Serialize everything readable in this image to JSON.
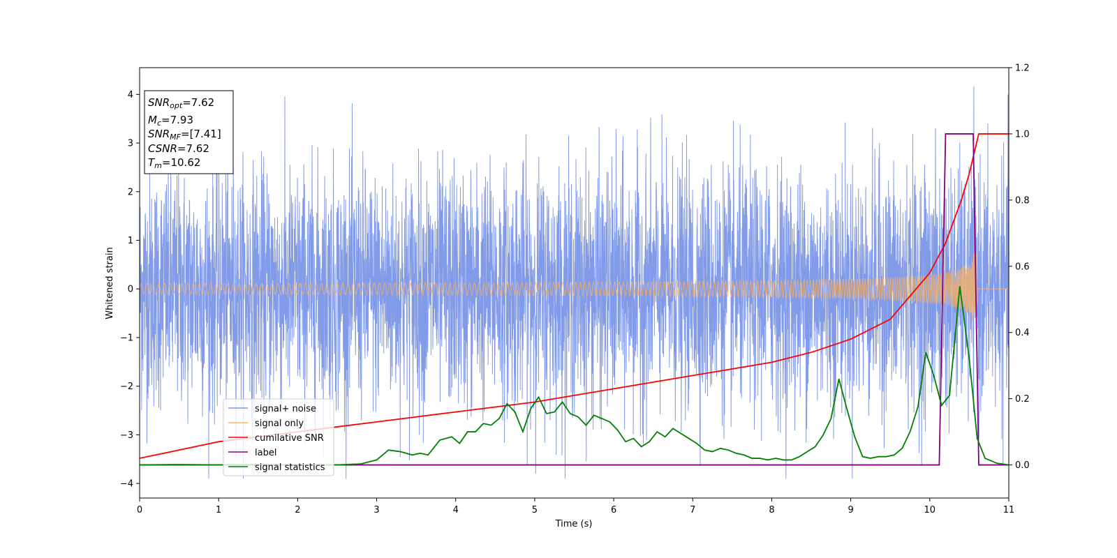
{
  "chart_data": {
    "type": "line",
    "xlabel": "Time (s)",
    "ylabel_left": "Whitened strain",
    "ylabel_right": "",
    "xlim": [
      0,
      11
    ],
    "ylim_left": [
      -4.3,
      4.55
    ],
    "ylim_right": [
      -0.1,
      1.2
    ],
    "x_ticks": [
      0,
      1,
      2,
      3,
      4,
      5,
      6,
      7,
      8,
      9,
      10,
      11
    ],
    "y_ticks_left": [
      -4,
      -3,
      -2,
      -1,
      0,
      1,
      2,
      3,
      4
    ],
    "y_ticks_right": [
      0.0,
      0.2,
      0.4,
      0.6,
      0.8,
      1.0,
      1.2
    ],
    "y_tick_labels_right": [
      "0.0",
      "0.2",
      "0.4",
      "0.6",
      "0.8",
      "1.0",
      "1.2"
    ],
    "grid": false,
    "legend_position": "lower-left",
    "annotation": {
      "snr_opt": {
        "name": "SNR",
        "sub": "opt",
        "value": "=7.62"
      },
      "mc": {
        "name": "M",
        "sub": "c",
        "value": "=7.93"
      },
      "snr_mf": {
        "name": "SNR",
        "sub": "MF",
        "value": "=[7.41]"
      },
      "csnr": {
        "name": "CSNR",
        "value": "=7.62"
      },
      "tm": {
        "name": "T",
        "sub": "m",
        "value": "=10.62"
      }
    },
    "series": [
      {
        "name": "signal+ noise",
        "axis": "left",
        "color": "#7b96e8",
        "description_envelope": {
          "typical_abs": 2.2,
          "peak_max": 4.17,
          "peak_min": -3.9
        }
      },
      {
        "name": "signal only",
        "axis": "left",
        "color": "#ffb35c",
        "chirp": {
          "start_amp": 0.03,
          "end_amp": 1.15,
          "end_time": 10.62
        }
      },
      {
        "name": "cumilative SNR",
        "axis": "right",
        "color": "#ff0000",
        "x": [
          0,
          1,
          2,
          3,
          4,
          5,
          6,
          7,
          8,
          8.5,
          9,
          9.5,
          10,
          10.2,
          10.4,
          10.5,
          10.62,
          11
        ],
        "values": [
          0.02,
          0.07,
          0.1,
          0.13,
          0.16,
          0.19,
          0.23,
          0.27,
          0.31,
          0.34,
          0.38,
          0.44,
          0.58,
          0.67,
          0.8,
          0.88,
          1.0,
          1.0
        ]
      },
      {
        "name": "label",
        "axis": "right",
        "color": "#800080",
        "x": [
          0,
          10.12,
          10.2,
          10.55,
          10.62,
          11
        ],
        "values": [
          0.0,
          0.0,
          1.0,
          1.0,
          0.0,
          0.0
        ]
      },
      {
        "name": "signal statistics",
        "axis": "right",
        "color": "#008000",
        "x": [
          0,
          0.5,
          1,
          1.5,
          2,
          2.5,
          2.8,
          3.0,
          3.15,
          3.3,
          3.45,
          3.55,
          3.65,
          3.8,
          3.95,
          4.05,
          4.15,
          4.25,
          4.35,
          4.45,
          4.55,
          4.65,
          4.75,
          4.85,
          4.95,
          5.05,
          5.15,
          5.25,
          5.35,
          5.45,
          5.55,
          5.65,
          5.75,
          5.85,
          5.95,
          6.05,
          6.15,
          6.25,
          6.35,
          6.45,
          6.55,
          6.65,
          6.75,
          6.85,
          6.95,
          7.05,
          7.15,
          7.25,
          7.35,
          7.45,
          7.55,
          7.65,
          7.75,
          7.85,
          7.95,
          8.05,
          8.15,
          8.25,
          8.35,
          8.45,
          8.55,
          8.65,
          8.75,
          8.85,
          8.95,
          9.05,
          9.15,
          9.25,
          9.35,
          9.45,
          9.55,
          9.65,
          9.75,
          9.85,
          9.95,
          10.05,
          10.15,
          10.25,
          10.38,
          10.5,
          10.6,
          10.7,
          10.85,
          11
        ],
        "values": [
          0.0,
          0.001,
          0.0,
          0.001,
          0.0,
          0.0,
          0.003,
          0.015,
          0.045,
          0.04,
          0.03,
          0.035,
          0.03,
          0.075,
          0.085,
          0.065,
          0.1,
          0.1,
          0.125,
          0.12,
          0.14,
          0.185,
          0.16,
          0.1,
          0.17,
          0.205,
          0.155,
          0.16,
          0.19,
          0.155,
          0.145,
          0.12,
          0.15,
          0.14,
          0.13,
          0.105,
          0.07,
          0.08,
          0.055,
          0.07,
          0.1,
          0.085,
          0.11,
          0.095,
          0.08,
          0.065,
          0.045,
          0.04,
          0.05,
          0.045,
          0.035,
          0.03,
          0.02,
          0.02,
          0.015,
          0.02,
          0.015,
          0.015,
          0.025,
          0.04,
          0.055,
          0.09,
          0.14,
          0.26,
          0.17,
          0.085,
          0.025,
          0.02,
          0.025,
          0.025,
          0.03,
          0.05,
          0.1,
          0.175,
          0.34,
          0.27,
          0.18,
          0.21,
          0.54,
          0.32,
          0.08,
          0.02,
          0.005,
          0.0
        ]
      }
    ]
  }
}
